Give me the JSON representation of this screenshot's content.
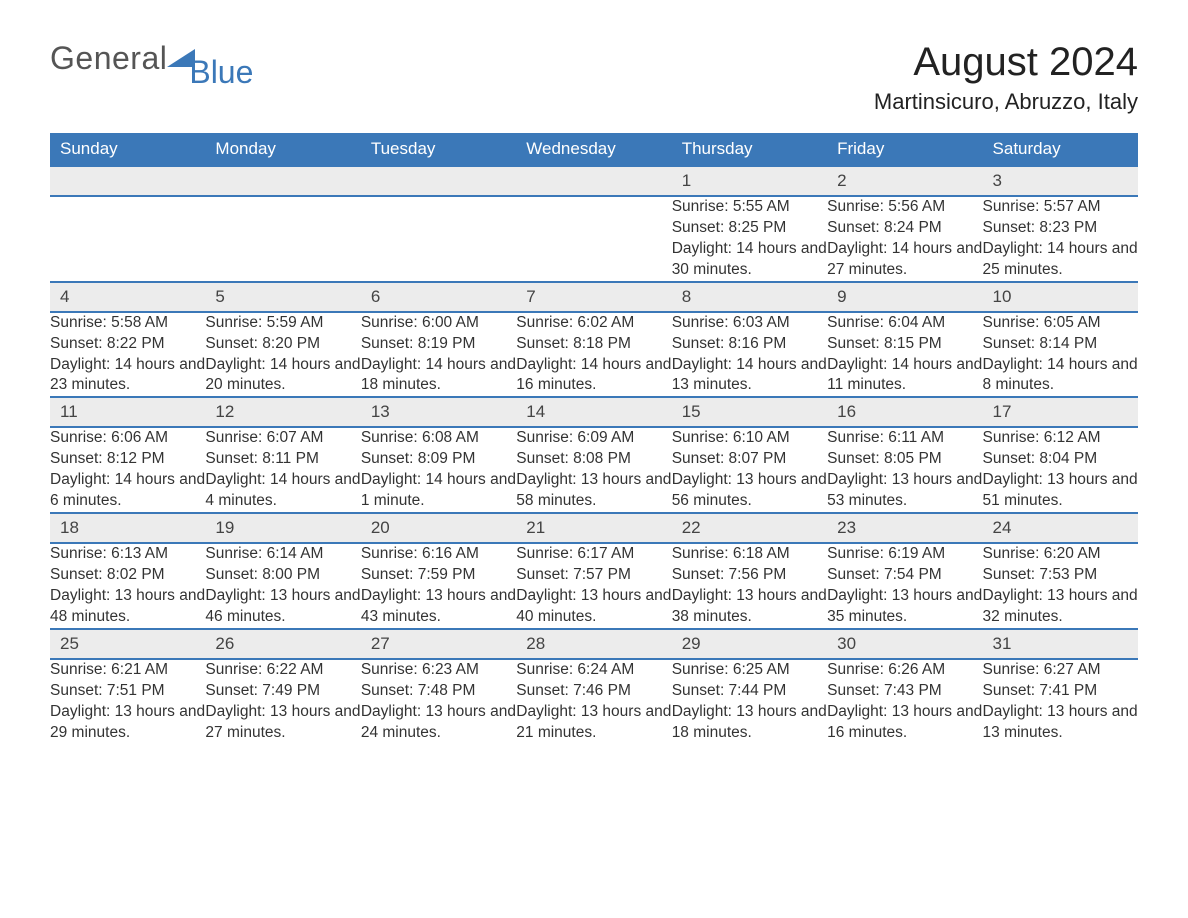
{
  "logo": {
    "text_general": "General",
    "text_blue": "Blue",
    "accent_color": "#3b78b8"
  },
  "title": "August 2024",
  "location": "Martinsicuro, Abruzzo, Italy",
  "colors": {
    "header_bg": "#3b78b8",
    "header_text": "#ffffff",
    "daynum_bg": "#ececec",
    "border": "#3b78b8",
    "body_text": "#333333",
    "page_bg": "#ffffff"
  },
  "font": {
    "family": "Arial",
    "title_size_pt": 30,
    "location_size_pt": 16,
    "header_size_pt": 13,
    "body_size_pt": 11.5
  },
  "day_headers": [
    "Sunday",
    "Monday",
    "Tuesday",
    "Wednesday",
    "Thursday",
    "Friday",
    "Saturday"
  ],
  "weeks": [
    [
      null,
      null,
      null,
      null,
      {
        "n": "1",
        "sunrise": "Sunrise: 5:55 AM",
        "sunset": "Sunset: 8:25 PM",
        "daylight": "Daylight: 14 hours and 30 minutes."
      },
      {
        "n": "2",
        "sunrise": "Sunrise: 5:56 AM",
        "sunset": "Sunset: 8:24 PM",
        "daylight": "Daylight: 14 hours and 27 minutes."
      },
      {
        "n": "3",
        "sunrise": "Sunrise: 5:57 AM",
        "sunset": "Sunset: 8:23 PM",
        "daylight": "Daylight: 14 hours and 25 minutes."
      }
    ],
    [
      {
        "n": "4",
        "sunrise": "Sunrise: 5:58 AM",
        "sunset": "Sunset: 8:22 PM",
        "daylight": "Daylight: 14 hours and 23 minutes."
      },
      {
        "n": "5",
        "sunrise": "Sunrise: 5:59 AM",
        "sunset": "Sunset: 8:20 PM",
        "daylight": "Daylight: 14 hours and 20 minutes."
      },
      {
        "n": "6",
        "sunrise": "Sunrise: 6:00 AM",
        "sunset": "Sunset: 8:19 PM",
        "daylight": "Daylight: 14 hours and 18 minutes."
      },
      {
        "n": "7",
        "sunrise": "Sunrise: 6:02 AM",
        "sunset": "Sunset: 8:18 PM",
        "daylight": "Daylight: 14 hours and 16 minutes."
      },
      {
        "n": "8",
        "sunrise": "Sunrise: 6:03 AM",
        "sunset": "Sunset: 8:16 PM",
        "daylight": "Daylight: 14 hours and 13 minutes."
      },
      {
        "n": "9",
        "sunrise": "Sunrise: 6:04 AM",
        "sunset": "Sunset: 8:15 PM",
        "daylight": "Daylight: 14 hours and 11 minutes."
      },
      {
        "n": "10",
        "sunrise": "Sunrise: 6:05 AM",
        "sunset": "Sunset: 8:14 PM",
        "daylight": "Daylight: 14 hours and 8 minutes."
      }
    ],
    [
      {
        "n": "11",
        "sunrise": "Sunrise: 6:06 AM",
        "sunset": "Sunset: 8:12 PM",
        "daylight": "Daylight: 14 hours and 6 minutes."
      },
      {
        "n": "12",
        "sunrise": "Sunrise: 6:07 AM",
        "sunset": "Sunset: 8:11 PM",
        "daylight": "Daylight: 14 hours and 4 minutes."
      },
      {
        "n": "13",
        "sunrise": "Sunrise: 6:08 AM",
        "sunset": "Sunset: 8:09 PM",
        "daylight": "Daylight: 14 hours and 1 minute."
      },
      {
        "n": "14",
        "sunrise": "Sunrise: 6:09 AM",
        "sunset": "Sunset: 8:08 PM",
        "daylight": "Daylight: 13 hours and 58 minutes."
      },
      {
        "n": "15",
        "sunrise": "Sunrise: 6:10 AM",
        "sunset": "Sunset: 8:07 PM",
        "daylight": "Daylight: 13 hours and 56 minutes."
      },
      {
        "n": "16",
        "sunrise": "Sunrise: 6:11 AM",
        "sunset": "Sunset: 8:05 PM",
        "daylight": "Daylight: 13 hours and 53 minutes."
      },
      {
        "n": "17",
        "sunrise": "Sunrise: 6:12 AM",
        "sunset": "Sunset: 8:04 PM",
        "daylight": "Daylight: 13 hours and 51 minutes."
      }
    ],
    [
      {
        "n": "18",
        "sunrise": "Sunrise: 6:13 AM",
        "sunset": "Sunset: 8:02 PM",
        "daylight": "Daylight: 13 hours and 48 minutes."
      },
      {
        "n": "19",
        "sunrise": "Sunrise: 6:14 AM",
        "sunset": "Sunset: 8:00 PM",
        "daylight": "Daylight: 13 hours and 46 minutes."
      },
      {
        "n": "20",
        "sunrise": "Sunrise: 6:16 AM",
        "sunset": "Sunset: 7:59 PM",
        "daylight": "Daylight: 13 hours and 43 minutes."
      },
      {
        "n": "21",
        "sunrise": "Sunrise: 6:17 AM",
        "sunset": "Sunset: 7:57 PM",
        "daylight": "Daylight: 13 hours and 40 minutes."
      },
      {
        "n": "22",
        "sunrise": "Sunrise: 6:18 AM",
        "sunset": "Sunset: 7:56 PM",
        "daylight": "Daylight: 13 hours and 38 minutes."
      },
      {
        "n": "23",
        "sunrise": "Sunrise: 6:19 AM",
        "sunset": "Sunset: 7:54 PM",
        "daylight": "Daylight: 13 hours and 35 minutes."
      },
      {
        "n": "24",
        "sunrise": "Sunrise: 6:20 AM",
        "sunset": "Sunset: 7:53 PM",
        "daylight": "Daylight: 13 hours and 32 minutes."
      }
    ],
    [
      {
        "n": "25",
        "sunrise": "Sunrise: 6:21 AM",
        "sunset": "Sunset: 7:51 PM",
        "daylight": "Daylight: 13 hours and 29 minutes."
      },
      {
        "n": "26",
        "sunrise": "Sunrise: 6:22 AM",
        "sunset": "Sunset: 7:49 PM",
        "daylight": "Daylight: 13 hours and 27 minutes."
      },
      {
        "n": "27",
        "sunrise": "Sunrise: 6:23 AM",
        "sunset": "Sunset: 7:48 PM",
        "daylight": "Daylight: 13 hours and 24 minutes."
      },
      {
        "n": "28",
        "sunrise": "Sunrise: 6:24 AM",
        "sunset": "Sunset: 7:46 PM",
        "daylight": "Daylight: 13 hours and 21 minutes."
      },
      {
        "n": "29",
        "sunrise": "Sunrise: 6:25 AM",
        "sunset": "Sunset: 7:44 PM",
        "daylight": "Daylight: 13 hours and 18 minutes."
      },
      {
        "n": "30",
        "sunrise": "Sunrise: 6:26 AM",
        "sunset": "Sunset: 7:43 PM",
        "daylight": "Daylight: 13 hours and 16 minutes."
      },
      {
        "n": "31",
        "sunrise": "Sunrise: 6:27 AM",
        "sunset": "Sunset: 7:41 PM",
        "daylight": "Daylight: 13 hours and 13 minutes."
      }
    ]
  ]
}
